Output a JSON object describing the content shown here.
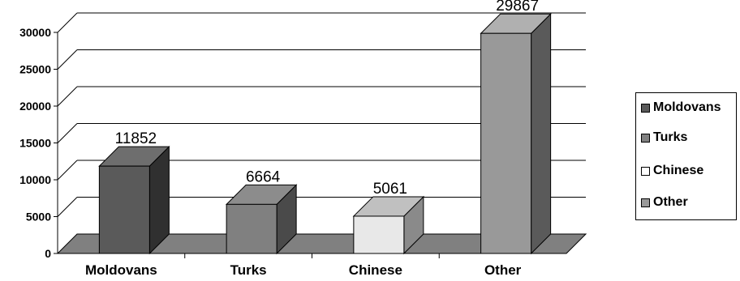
{
  "chart_data": {
    "type": "bar",
    "categories": [
      "Moldovans",
      "Turks",
      "Chinese",
      "Other"
    ],
    "values": [
      11852,
      6664,
      5061,
      29867
    ],
    "data_labels": [
      "11852",
      "6664",
      "5061",
      "29867"
    ],
    "ylim": [
      0,
      30000
    ],
    "yticks": [
      "0",
      "5000",
      "10000",
      "15000",
      "20000",
      "25000",
      "30000"
    ],
    "grid": true,
    "legend_position": "right",
    "legend": [
      "Moldovans",
      "Turks",
      "Chinese",
      "Other"
    ],
    "colors": [
      "#5a5a5a",
      "#808080",
      "#e8e8e8",
      "#999999"
    ],
    "side_colors": [
      "#303030",
      "#4a4a4a",
      "#8a8a8a",
      "#5a5a5a"
    ],
    "top_colors": [
      "#6e6e6e",
      "#8c8c8c",
      "#c0c0c0",
      "#b0b0b0"
    ],
    "title": "",
    "xlabel": "",
    "ylabel": ""
  }
}
